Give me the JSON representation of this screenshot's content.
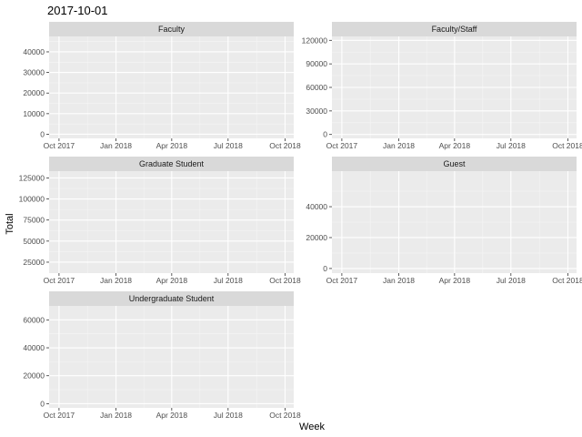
{
  "chart_data": {
    "type": "line",
    "title": "2017-10-01",
    "xlabel": "Week",
    "ylabel": "Total",
    "x_domain": [
      "2017-09-15",
      "2018-10-15"
    ],
    "x_ticks": [
      {
        "date": "2017-10-01",
        "label": "Oct 2017"
      },
      {
        "date": "2018-01-01",
        "label": "Jan 2018"
      },
      {
        "date": "2018-04-01",
        "label": "Apr 2018"
      },
      {
        "date": "2018-07-01",
        "label": "Jul 2018"
      },
      {
        "date": "2018-10-01",
        "label": "Oct 2018"
      }
    ],
    "grid": true,
    "colors": {
      "panel_bg": "#ebebeb",
      "grid_major": "#ffffff",
      "grid_minor": "#f5f5f5",
      "strip_bg": "#d9d9d9"
    },
    "panels": [
      {
        "strip": "Faculty",
        "ylim": [
          -2000,
          47500
        ],
        "y_ticks": [
          0,
          10000,
          20000,
          30000,
          40000
        ],
        "series": []
      },
      {
        "strip": "Faculty/Staff",
        "ylim": [
          -5000,
          125000
        ],
        "y_ticks": [
          0,
          30000,
          60000,
          90000,
          120000
        ],
        "series": []
      },
      {
        "strip": "Graduate Student",
        "ylim": [
          12000,
          133000
        ],
        "y_ticks": [
          25000,
          50000,
          75000,
          100000,
          125000
        ],
        "series": []
      },
      {
        "strip": "Guest",
        "ylim": [
          -3000,
          63000
        ],
        "y_ticks": [
          0,
          20000,
          40000
        ],
        "series": []
      },
      {
        "strip": "Undergraduate Student",
        "ylim": [
          -3000,
          70000
        ],
        "y_ticks": [
          0,
          20000,
          40000,
          60000
        ],
        "series": []
      }
    ]
  }
}
